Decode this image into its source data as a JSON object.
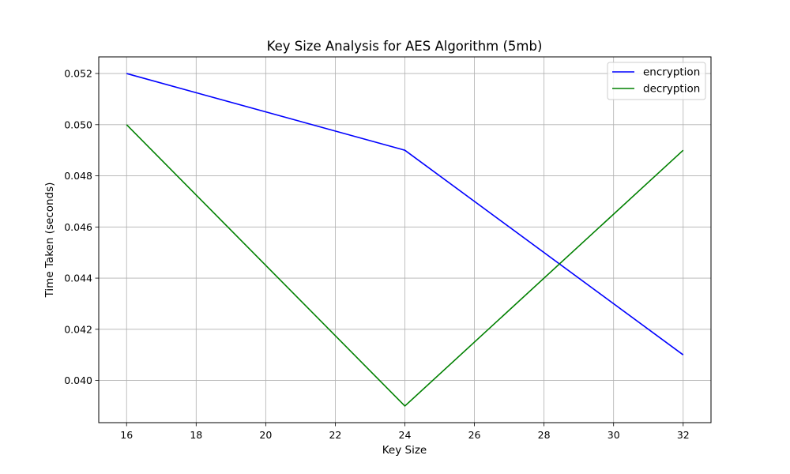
{
  "chart_data": {
    "type": "line",
    "title": "Key Size Analysis for AES Algorithm (5mb)",
    "xlabel": "Key Size",
    "ylabel": "Time Taken (seconds)",
    "x": [
      16,
      24,
      32
    ],
    "series": [
      {
        "name": "encryption",
        "color": "#0000ff",
        "values": [
          0.052,
          0.049,
          0.041
        ]
      },
      {
        "name": "decryption",
        "color": "#008000",
        "values": [
          0.05,
          0.039,
          0.049
        ]
      }
    ],
    "xlim": [
      15.2,
      32.8
    ],
    "ylim": [
      0.03835,
      0.05265
    ],
    "xticks": [
      16,
      18,
      20,
      22,
      24,
      26,
      28,
      30,
      32
    ],
    "yticks": [
      0.04,
      0.042,
      0.044,
      0.046,
      0.048,
      0.05,
      0.052
    ],
    "ytick_labels": [
      "0.040",
      "0.042",
      "0.044",
      "0.046",
      "0.048",
      "0.050",
      "0.052"
    ],
    "grid": true,
    "legend_position": "top-right"
  }
}
